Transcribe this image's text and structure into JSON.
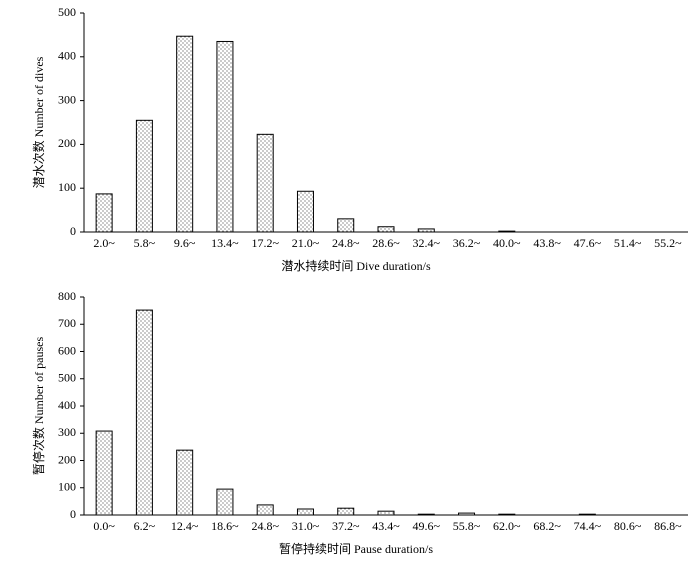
{
  "chart_data": [
    {
      "type": "bar",
      "xlabel": "潜水持续时间 Dive duration/s",
      "ylabel": "潜水次数 Number of dives",
      "categories": [
        "2.0~",
        "5.8~",
        "9.6~",
        "13.4~",
        "17.2~",
        "21.0~",
        "24.8~",
        "28.6~",
        "32.4~",
        "36.2~",
        "40.0~",
        "43.8~",
        "47.6~",
        "51.4~",
        "55.2~"
      ],
      "values": [
        87,
        255,
        447,
        435,
        223,
        93,
        30,
        12,
        7,
        0,
        2,
        0,
        0,
        0,
        0
      ],
      "color": "#000000",
      "ylim": [
        0,
        500
      ],
      "yticks": [
        0,
        100,
        200,
        300,
        400,
        500
      ],
      "grid": false
    },
    {
      "type": "bar",
      "xlabel": "暂停持续时间 Pause duration/s",
      "ylabel": "暂停次数 Number of pauses",
      "categories": [
        "0.0~",
        "6.2~",
        "12.4~",
        "18.6~",
        "24.8~",
        "31.0~",
        "37.2~",
        "43.4~",
        "49.6~",
        "55.8~",
        "62.0~",
        "68.2~",
        "74.4~",
        "80.6~",
        "86.8~"
      ],
      "values": [
        308,
        752,
        238,
        95,
        37,
        22,
        25,
        14,
        3,
        7,
        3,
        0,
        3,
        0,
        0
      ],
      "color": "#000000",
      "ylim": [
        0,
        800
      ],
      "yticks": [
        0,
        100,
        200,
        300,
        400,
        500,
        600,
        700,
        800
      ],
      "grid": false
    }
  ]
}
